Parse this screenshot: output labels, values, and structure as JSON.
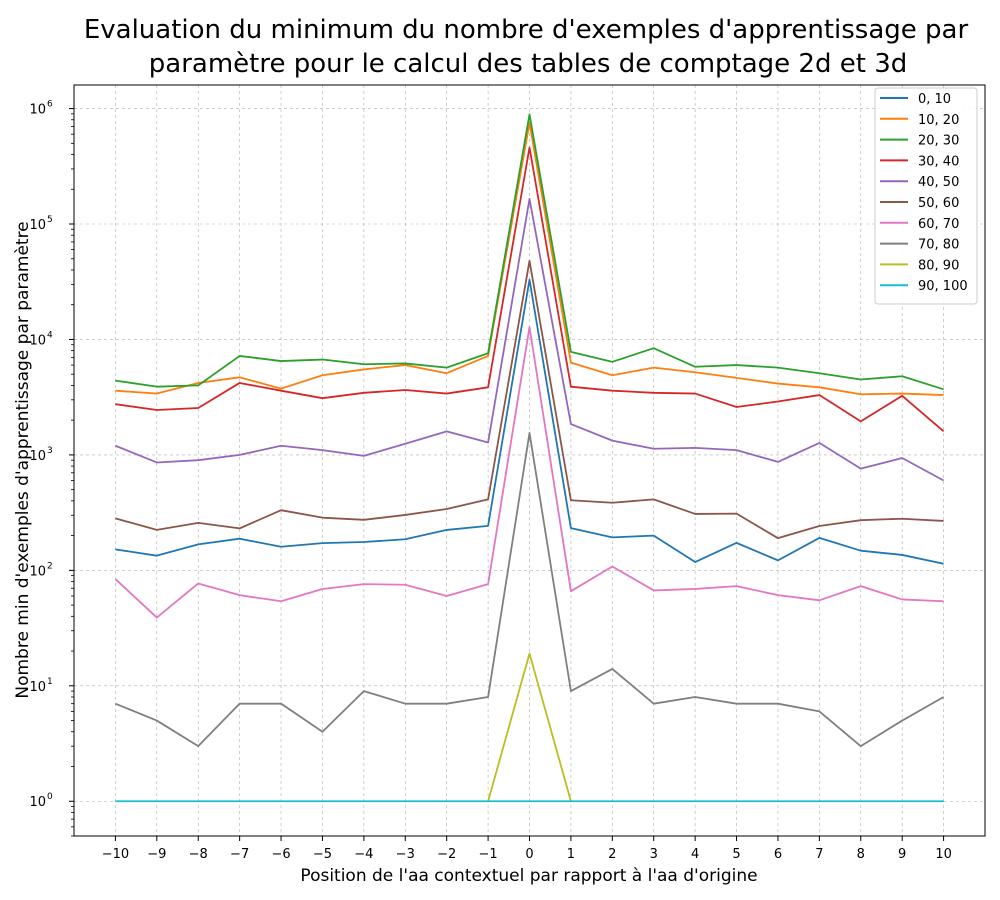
{
  "chart_data": {
    "type": "line",
    "title_lines": [
      "Evaluation du minimum du nombre d'exemples d'apprentissage par",
      "paramètre pour le calcul des tables de comptage 2d et 3d"
    ],
    "xlabel": "Position de l'aa contextuel par rapport à l'aa d'origine",
    "ylabel": "Nombre min d'exemples d'apprentissage par paramètre",
    "yscale": "log",
    "xlim": [
      -11,
      11
    ],
    "ylim": [
      0.5,
      1600000
    ],
    "grid": true,
    "legend_position": "top-right",
    "x": [
      -10,
      -9,
      -8,
      -7,
      -6,
      -5,
      -4,
      -3,
      -2,
      -1,
      0,
      1,
      2,
      3,
      4,
      5,
      6,
      7,
      8,
      9,
      10
    ],
    "x_tick_labels": [
      "−10",
      "−9",
      "−8",
      "−7",
      "−6",
      "−5",
      "−4",
      "−3",
      "−2",
      "−1",
      "0",
      "1",
      "2",
      "3",
      "4",
      "5",
      "6",
      "7",
      "8",
      "9",
      "10"
    ],
    "y_ticks": [
      {
        "value": 1,
        "base": "10",
        "exp": "0"
      },
      {
        "value": 10,
        "base": "10",
        "exp": "1"
      },
      {
        "value": 100,
        "base": "10",
        "exp": "2"
      },
      {
        "value": 1000,
        "base": "10",
        "exp": "3"
      },
      {
        "value": 10000,
        "base": "10",
        "exp": "4"
      },
      {
        "value": 100000,
        "base": "10",
        "exp": "5"
      },
      {
        "value": 1000000,
        "base": "10",
        "exp": "6"
      }
    ],
    "series": [
      {
        "name": "0, 10",
        "color": "#1f77b4",
        "values": [
          152,
          134,
          168,
          188,
          160,
          172,
          176,
          186,
          224,
          243,
          33000,
          232,
          193,
          200,
          118,
          173,
          122,
          191,
          148,
          136,
          114
        ]
      },
      {
        "name": "10, 20",
        "color": "#ff7f0e",
        "values": [
          3600,
          3400,
          4200,
          4700,
          3750,
          4900,
          5500,
          6000,
          5100,
          7200,
          750000,
          6300,
          4900,
          5700,
          5200,
          4650,
          4150,
          3850,
          3350,
          3400,
          3300
        ]
      },
      {
        "name": "20, 30",
        "color": "#2ca02c",
        "values": [
          4400,
          3900,
          4000,
          7200,
          6500,
          6700,
          6100,
          6200,
          5700,
          7600,
          890000,
          7800,
          6400,
          8400,
          5800,
          6000,
          5700,
          5100,
          4500,
          4800,
          3700
        ]
      },
      {
        "name": "30, 40",
        "color": "#d62728",
        "values": [
          2750,
          2450,
          2550,
          4200,
          3600,
          3100,
          3450,
          3650,
          3400,
          3850,
          460000,
          3900,
          3600,
          3450,
          3400,
          2600,
          2900,
          3300,
          1950,
          3250,
          1600
        ]
      },
      {
        "name": "40, 50",
        "color": "#9467bd",
        "values": [
          1200,
          860,
          900,
          1000,
          1200,
          1100,
          980,
          1250,
          1600,
          1280,
          165000,
          1850,
          1330,
          1130,
          1150,
          1100,
          870,
          1270,
          760,
          940,
          600
        ]
      },
      {
        "name": "50, 60",
        "color": "#8c564b",
        "values": [
          282,
          224,
          258,
          231,
          332,
          286,
          274,
          302,
          340,
          412,
          48000,
          405,
          385,
          412,
          308,
          310,
          190,
          242,
          272,
          280,
          268
        ]
      },
      {
        "name": "60, 70",
        "color": "#e377c2",
        "values": [
          84,
          39,
          77,
          61,
          54,
          69,
          76,
          75,
          60,
          76,
          12800,
          66,
          108,
          67,
          69,
          73,
          61,
          55,
          73,
          56,
          54
        ]
      },
      {
        "name": "70, 80",
        "color": "#7f7f7f",
        "values": [
          7,
          5,
          3,
          7,
          7,
          4,
          9,
          7,
          7,
          8,
          1550,
          9,
          14,
          7,
          8,
          7,
          7,
          6,
          3,
          5,
          8
        ]
      },
      {
        "name": "80, 90",
        "color": "#bcbd22",
        "values": [
          null,
          null,
          null,
          null,
          null,
          null,
          null,
          null,
          null,
          1,
          19,
          1,
          null,
          null,
          null,
          null,
          null,
          null,
          null,
          null,
          null
        ]
      },
      {
        "name": "90, 100",
        "color": "#17becf",
        "values": [
          1,
          1,
          1,
          1,
          1,
          1,
          1,
          1,
          1,
          1,
          1,
          1,
          1,
          1,
          1,
          1,
          1,
          1,
          1,
          1,
          1
        ]
      }
    ]
  }
}
